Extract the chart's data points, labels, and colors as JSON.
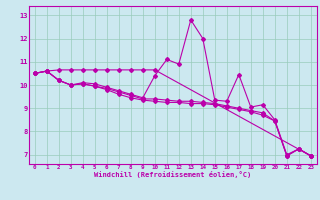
{
  "xlabel": "Windchill (Refroidissement éolien,°C)",
  "background_color": "#cce8f0",
  "grid_color": "#99ccbb",
  "line_color": "#bb00aa",
  "xlim": [
    -0.5,
    23.5
  ],
  "ylim": [
    6.6,
    13.4
  ],
  "xticks": [
    0,
    1,
    2,
    3,
    4,
    5,
    6,
    7,
    8,
    9,
    10,
    11,
    12,
    13,
    14,
    15,
    16,
    17,
    18,
    19,
    20,
    21,
    22,
    23
  ],
  "yticks": [
    7,
    8,
    9,
    10,
    11,
    12,
    13
  ],
  "series1_x": [
    0,
    1,
    2,
    3,
    4,
    5,
    6,
    7,
    8,
    9,
    10,
    11,
    12,
    13,
    14,
    15,
    16,
    17,
    18,
    19,
    20,
    21,
    22,
    23
  ],
  "series1_y": [
    10.5,
    10.6,
    10.2,
    10.0,
    10.1,
    10.05,
    9.9,
    9.75,
    9.6,
    9.45,
    10.4,
    11.1,
    10.9,
    12.8,
    12.0,
    9.35,
    9.3,
    10.45,
    9.05,
    9.15,
    8.5,
    7.0,
    7.25,
    6.95
  ],
  "series2_x": [
    0,
    1,
    2,
    3,
    4,
    5,
    6,
    7,
    8,
    9,
    10,
    11,
    12,
    13,
    14,
    15,
    16,
    17,
    18,
    19,
    20,
    21,
    22,
    23
  ],
  "series2_y": [
    10.5,
    10.6,
    10.2,
    10.0,
    10.05,
    9.95,
    9.85,
    9.7,
    9.55,
    9.4,
    9.4,
    9.35,
    9.3,
    9.3,
    9.25,
    9.2,
    9.1,
    9.0,
    8.9,
    8.8,
    8.45,
    6.95,
    7.25,
    6.95
  ],
  "series3_x": [
    0,
    1,
    2,
    3,
    4,
    5,
    6,
    7,
    8,
    9,
    10,
    23
  ],
  "series3_y": [
    10.5,
    10.6,
    10.65,
    10.65,
    10.65,
    10.65,
    10.65,
    10.65,
    10.65,
    10.65,
    10.65,
    6.95
  ],
  "series4_x": [
    0,
    1,
    2,
    3,
    4,
    5,
    6,
    7,
    8,
    9,
    10,
    11,
    12,
    13,
    14,
    15,
    16,
    17,
    18,
    19,
    20,
    21,
    22,
    23
  ],
  "series4_y": [
    10.5,
    10.6,
    10.2,
    10.0,
    10.05,
    9.95,
    9.8,
    9.6,
    9.45,
    9.35,
    9.3,
    9.25,
    9.25,
    9.2,
    9.2,
    9.15,
    9.05,
    8.95,
    8.85,
    8.7,
    8.45,
    6.95,
    7.25,
    6.95
  ]
}
